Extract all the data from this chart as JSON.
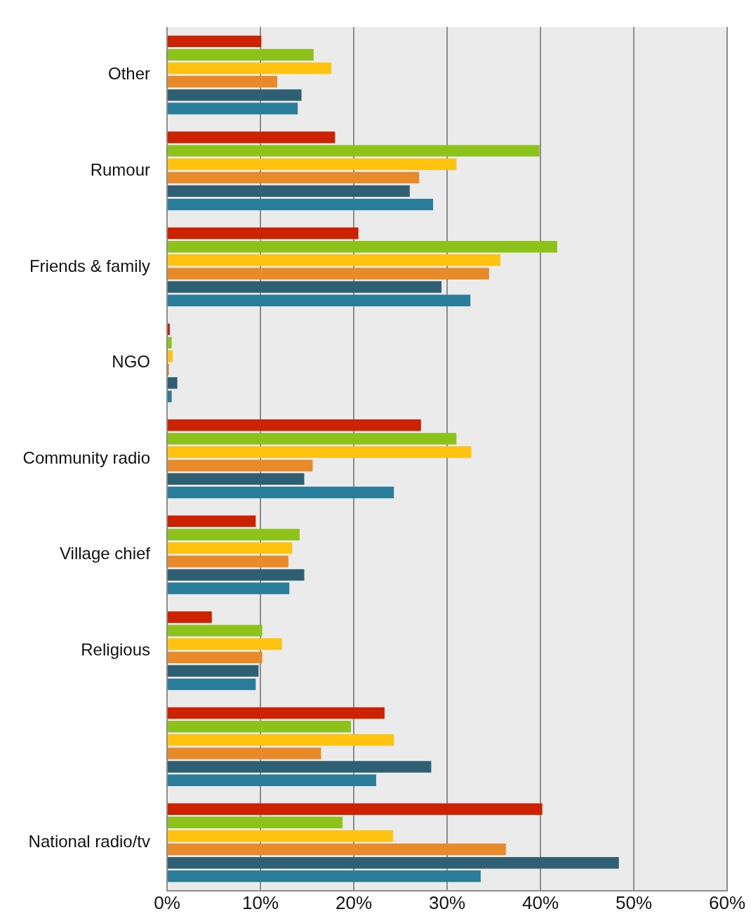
{
  "chart_data": {
    "type": "bar",
    "orientation": "horizontal",
    "categories": [
      "Other",
      "Rumour",
      "Friends & family",
      "NGO",
      "Community radio",
      "Village chief",
      "Religious",
      null,
      "National radio/tv"
    ],
    "series": [
      {
        "color": "#cc2200",
        "values": [
          10.1,
          18.0,
          20.5,
          0.3,
          27.2,
          9.5,
          4.8,
          23.3,
          40.2
        ]
      },
      {
        "color": "#8cc21a",
        "values": [
          15.7,
          39.9,
          41.8,
          0.5,
          31.0,
          14.2,
          10.2,
          19.7,
          18.8
        ]
      },
      {
        "color": "#ffc20e",
        "values": [
          17.6,
          31.0,
          35.7,
          0.6,
          32.6,
          13.4,
          12.3,
          24.3,
          24.2
        ]
      },
      {
        "color": "#e8892a",
        "values": [
          11.8,
          27.0,
          34.5,
          0.2,
          15.6,
          13.0,
          10.2,
          16.5,
          36.3
        ]
      },
      {
        "color": "#2e5f73",
        "values": [
          14.4,
          26.0,
          29.4,
          1.1,
          14.7,
          14.7,
          9.8,
          28.3,
          48.4
        ]
      },
      {
        "color": "#2a7d9a",
        "values": [
          14.0,
          28.5,
          32.5,
          0.5,
          24.3,
          13.1,
          9.5,
          22.4,
          33.6
        ]
      }
    ],
    "xlim": [
      0,
      60
    ],
    "xticks": [
      {
        "value": 0,
        "label": "0%"
      },
      {
        "value": 10,
        "label": "10%"
      },
      {
        "value": 20,
        "label": "20%"
      },
      {
        "value": 30,
        "label": "30%"
      },
      {
        "value": 40,
        "label": "40%"
      },
      {
        "value": 50,
        "label": "50%"
      },
      {
        "value": 60,
        "label": "60%"
      }
    ],
    "grid": "x"
  }
}
